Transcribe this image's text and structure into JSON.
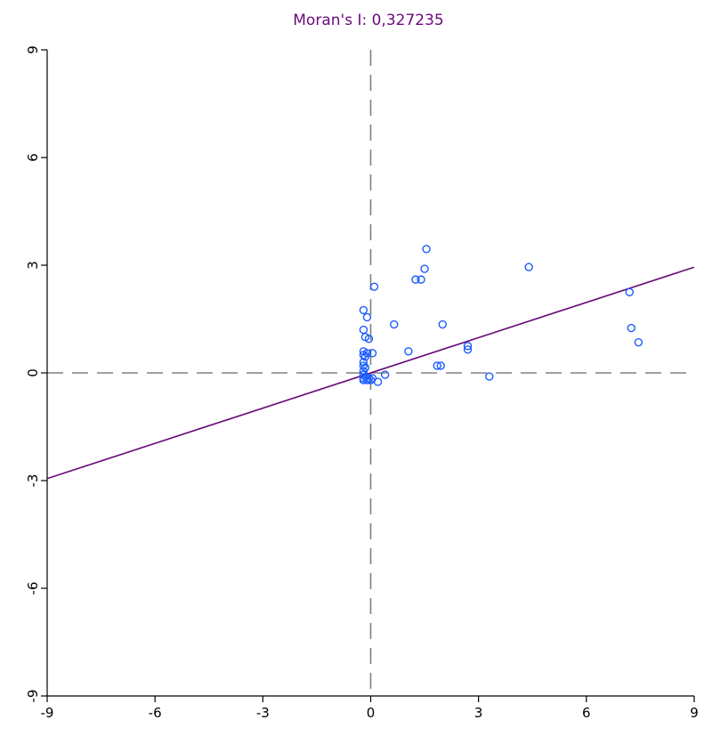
{
  "chart_data": {
    "type": "scatter",
    "title": "Moran's I: 0,327235",
    "xlabel": "",
    "ylabel": "",
    "xlim": [
      -9,
      9
    ],
    "ylim": [
      -9,
      9
    ],
    "xticks": [
      -9,
      -6,
      -3,
      0,
      3,
      6,
      9
    ],
    "yticks": [
      -9,
      -6,
      -3,
      0,
      3,
      6,
      9
    ],
    "xtick_labels": [
      "-9",
      "-6",
      "-3",
      "0",
      "3",
      "6",
      "9"
    ],
    "ytick_labels": [
      "-9",
      "-6",
      "-3",
      "0",
      "3",
      "6",
      "9"
    ],
    "grid": false,
    "reference_lines": {
      "x": 0,
      "y": 0,
      "style": "dashed"
    },
    "regression_line": {
      "slope": 0.327235,
      "intercept": 0
    },
    "points": [
      {
        "x": -0.2,
        "y": 1.75
      },
      {
        "x": -0.1,
        "y": 1.55
      },
      {
        "x": -0.2,
        "y": 1.2
      },
      {
        "x": -0.15,
        "y": 1.0
      },
      {
        "x": -0.05,
        "y": 0.95
      },
      {
        "x": -0.2,
        "y": 0.6
      },
      {
        "x": -0.2,
        "y": 0.5
      },
      {
        "x": -0.15,
        "y": 0.45
      },
      {
        "x": -0.1,
        "y": 0.55
      },
      {
        "x": 0.05,
        "y": 0.55
      },
      {
        "x": -0.2,
        "y": 0.3
      },
      {
        "x": -0.2,
        "y": 0.2
      },
      {
        "x": -0.15,
        "y": 0.15
      },
      {
        "x": -0.2,
        "y": 0.05
      },
      {
        "x": -0.2,
        "y": -0.05
      },
      {
        "x": -0.15,
        "y": -0.1
      },
      {
        "x": -0.2,
        "y": -0.15
      },
      {
        "x": -0.2,
        "y": -0.2
      },
      {
        "x": -0.1,
        "y": -0.2
      },
      {
        "x": -0.05,
        "y": -0.15
      },
      {
        "x": 0.0,
        "y": -0.2
      },
      {
        "x": 0.05,
        "y": -0.15
      },
      {
        "x": 0.2,
        "y": -0.25
      },
      {
        "x": 0.4,
        "y": -0.05
      },
      {
        "x": 0.1,
        "y": 2.4
      },
      {
        "x": 0.65,
        "y": 1.35
      },
      {
        "x": 1.05,
        "y": 0.6
      },
      {
        "x": 1.25,
        "y": 2.6
      },
      {
        "x": 1.4,
        "y": 2.6
      },
      {
        "x": 1.5,
        "y": 2.9
      },
      {
        "x": 1.55,
        "y": 3.45
      },
      {
        "x": 1.85,
        "y": 0.2
      },
      {
        "x": 1.95,
        "y": 0.2
      },
      {
        "x": 2.0,
        "y": 1.35
      },
      {
        "x": 2.7,
        "y": 0.75
      },
      {
        "x": 2.7,
        "y": 0.65
      },
      {
        "x": 3.3,
        "y": -0.1
      },
      {
        "x": 4.4,
        "y": 2.95
      },
      {
        "x": 7.2,
        "y": 2.25
      },
      {
        "x": 7.25,
        "y": 1.25
      },
      {
        "x": 7.45,
        "y": 0.85
      }
    ],
    "colors": {
      "points": "#1a5cff",
      "regression": "#6a0a7a",
      "reference": "#808080",
      "axes": "#000000",
      "title": "#6a0a7a"
    }
  }
}
